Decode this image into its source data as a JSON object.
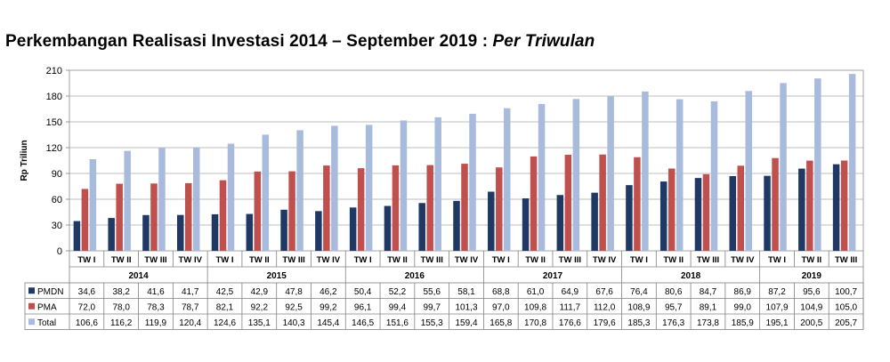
{
  "page": {
    "title_main": "Perkembangan Realisasi Investasi 2014 – September 2019 : ",
    "title_italic": "Per Triwulan"
  },
  "chart_data": {
    "type": "bar",
    "title": "Perkembangan Realisasi Investasi 2014 – September 2019 : Per Triwulan",
    "ylabel": "Rp Triliun",
    "ylim": [
      0,
      210
    ],
    "yticks": [
      0,
      30,
      60,
      90,
      120,
      150,
      180,
      210
    ],
    "grid": true,
    "legend_placement": "table-left",
    "categories": [
      "TW I",
      "TW II",
      "TW III",
      "TW IV",
      "TW I",
      "TW II",
      "TW III",
      "TW IV",
      "TW I",
      "TW II",
      "TW III",
      "TW IV",
      "TW I",
      "TW II",
      "TW III",
      "TW IV",
      "TW I",
      "TW II",
      "TW III",
      "TW IV",
      "TW I",
      "TW II",
      "TW III"
    ],
    "years": [
      {
        "label": "2014",
        "count": 4
      },
      {
        "label": "2015",
        "count": 4
      },
      {
        "label": "2016",
        "count": 4
      },
      {
        "label": "2017",
        "count": 4
      },
      {
        "label": "2018",
        "count": 4
      },
      {
        "label": "2019",
        "count": 3
      }
    ],
    "series": [
      {
        "name": "PMDN",
        "color": "#1f3864",
        "values": [
          34.6,
          38.2,
          41.6,
          41.7,
          42.5,
          42.9,
          47.8,
          46.2,
          50.4,
          52.2,
          55.6,
          58.1,
          68.8,
          61.0,
          64.9,
          67.6,
          76.4,
          80.6,
          84.7,
          86.9,
          87.2,
          95.6,
          100.7
        ]
      },
      {
        "name": "PMA",
        "color": "#c0504d",
        "values": [
          72.0,
          78.0,
          78.3,
          78.7,
          82.1,
          92.2,
          92.5,
          99.2,
          96.1,
          99.4,
          99.7,
          101.3,
          97.0,
          109.8,
          111.7,
          112.0,
          108.9,
          95.7,
          89.1,
          99.0,
          107.9,
          104.9,
          105.0
        ]
      },
      {
        "name": "Total",
        "color": "#a9bbdd",
        "values": [
          106.6,
          116.2,
          119.9,
          120.4,
          124.6,
          135.1,
          140.3,
          145.4,
          146.5,
          151.6,
          155.3,
          159.4,
          165.8,
          170.8,
          176.6,
          179.6,
          185.3,
          176.3,
          173.8,
          185.9,
          195.1,
          200.5,
          205.7
        ]
      }
    ],
    "table_values": {
      "PMDN": [
        "34,6",
        "38,2",
        "41,6",
        "41,7",
        "42,5",
        "42,9",
        "47,8",
        "46,2",
        "50,4",
        "52,2",
        "55,6",
        "58,1",
        "68,8",
        "61,0",
        "64,9",
        "67,6",
        "76,4",
        "80,6",
        "84,7",
        "86,9",
        "87,2",
        "95,6",
        "100,7"
      ],
      "PMA": [
        "72,0",
        "78,0",
        "78,3",
        "78,7",
        "82,1",
        "92,2",
        "92,5",
        "99,2",
        "96,1",
        "99,4",
        "99,7",
        "101,3",
        "97,0",
        "109,8",
        "111,7",
        "112,0",
        "108,9",
        "95,7",
        "89,1",
        "99,0",
        "107,9",
        "104,9",
        "105,0"
      ],
      "Total": [
        "106,6",
        "116,2",
        "119,9",
        "120,4",
        "124,6",
        "135,1",
        "140,3",
        "145,4",
        "146,5",
        "151,6",
        "155,3",
        "159,4",
        "165,8",
        "170,8",
        "176,6",
        "179,6",
        "185,3",
        "176,3",
        "173,8",
        "185,9",
        "195,1",
        "200,5",
        "205,7"
      ]
    }
  }
}
